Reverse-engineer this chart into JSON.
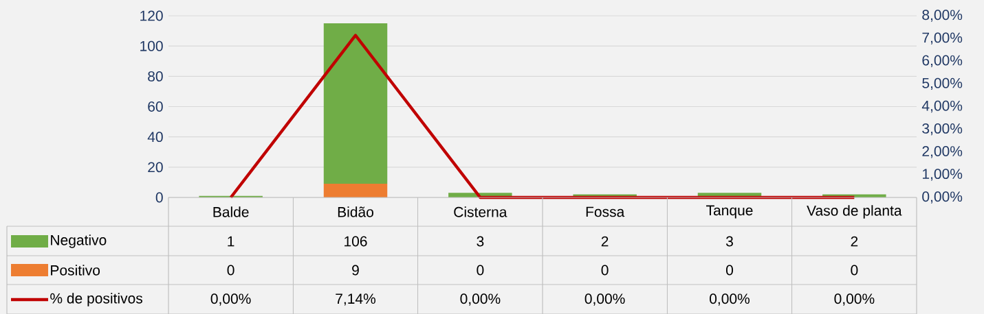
{
  "chart_data": {
    "type": "bar",
    "stacked": true,
    "categories": [
      "Balde",
      "Bidão",
      "Cisterna",
      "Fossa",
      "Tanque",
      "Vaso de planta"
    ],
    "series": [
      {
        "name": "Positivo",
        "color": "#ed7d31",
        "values": [
          0,
          9,
          0,
          0,
          0,
          0
        ],
        "value_labels": [
          "0",
          "9",
          "0",
          "0",
          "0",
          "0"
        ]
      },
      {
        "name": "Negativo",
        "color": "#70ad47",
        "values": [
          1,
          106,
          3,
          2,
          3,
          2
        ],
        "value_labels": [
          "1",
          "106",
          "3",
          "2",
          "3",
          "2"
        ]
      },
      {
        "name": "% de positivos",
        "type": "line",
        "axis": "y2",
        "color": "#c00000",
        "values": [
          0,
          7.14,
          0,
          0,
          0,
          0
        ],
        "value_labels": [
          "0,00%",
          "7,14%",
          "0,00%",
          "0,00%",
          "0,00%",
          "0,00%"
        ]
      }
    ],
    "ylim": [
      0,
      120
    ],
    "yticks": [
      0,
      20,
      40,
      60,
      80,
      100,
      120
    ],
    "y2lim": [
      0,
      8
    ],
    "y2ticks": [
      {
        "value": 0,
        "label": "0,00%"
      },
      {
        "value": 1,
        "label": "1,00%"
      },
      {
        "value": 2,
        "label": "2,00%"
      },
      {
        "value": 3,
        "label": "3,00%"
      },
      {
        "value": 4,
        "label": "4,00%"
      },
      {
        "value": 5,
        "label": "5,00%"
      },
      {
        "value": 6,
        "label": "6,00%"
      },
      {
        "value": 7,
        "label": "7,00%"
      },
      {
        "value": 8,
        "label": "8,00%"
      }
    ],
    "grid": "y",
    "legend": "bottom"
  }
}
